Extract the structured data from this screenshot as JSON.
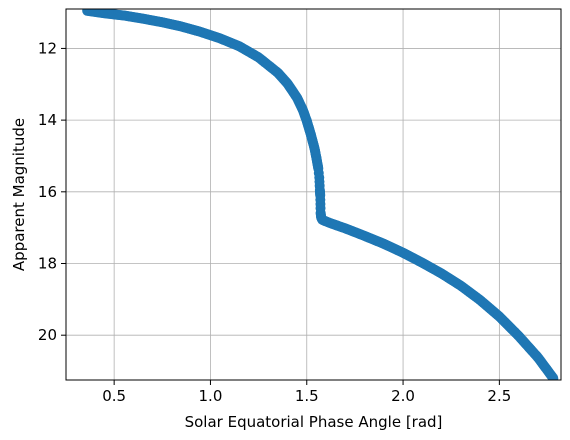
{
  "chart_data": {
    "type": "scatter",
    "title": "",
    "xlabel": "Solar Equatorial Phase Angle [rad]",
    "ylabel": "Apparent Magnitude",
    "xlim": [
      0.25,
      2.82
    ],
    "ylim": [
      10.9,
      21.25
    ],
    "y_inverted": true,
    "grid": true,
    "x_ticks": [
      0.5,
      1.0,
      1.5,
      2.0,
      2.5
    ],
    "x_tick_labels": [
      "0.5",
      "1.0",
      "1.5",
      "2.0",
      "2.5"
    ],
    "y_ticks": [
      12,
      14,
      16,
      18,
      20
    ],
    "y_tick_labels": [
      "12",
      "14",
      "16",
      "18",
      "20"
    ],
    "marker_color": "#1f77b4",
    "series": [
      {
        "x": [
          0.36,
          0.45,
          0.55,
          0.65,
          0.75,
          0.85,
          0.95,
          1.05,
          1.15,
          1.25,
          1.35,
          1.4,
          1.45,
          1.48,
          1.5,
          1.52,
          1.54,
          1.55,
          1.56,
          1.565,
          1.568,
          1.57,
          1.572,
          1.575,
          1.58,
          1.62,
          1.7,
          1.8,
          1.9,
          2.0,
          2.1,
          2.2,
          2.3,
          2.4,
          2.5,
          2.6,
          2.7,
          2.78
        ],
        "y": [
          10.95,
          11.02,
          11.08,
          11.17,
          11.27,
          11.39,
          11.54,
          11.72,
          11.94,
          12.25,
          12.68,
          12.98,
          13.38,
          13.72,
          14.02,
          14.38,
          14.78,
          15.05,
          15.35,
          15.6,
          15.95,
          16.1,
          16.58,
          16.72,
          16.78,
          16.87,
          17.02,
          17.23,
          17.45,
          17.7,
          17.98,
          18.28,
          18.62,
          19.02,
          19.48,
          20.02,
          20.62,
          21.2
        ]
      }
    ]
  }
}
